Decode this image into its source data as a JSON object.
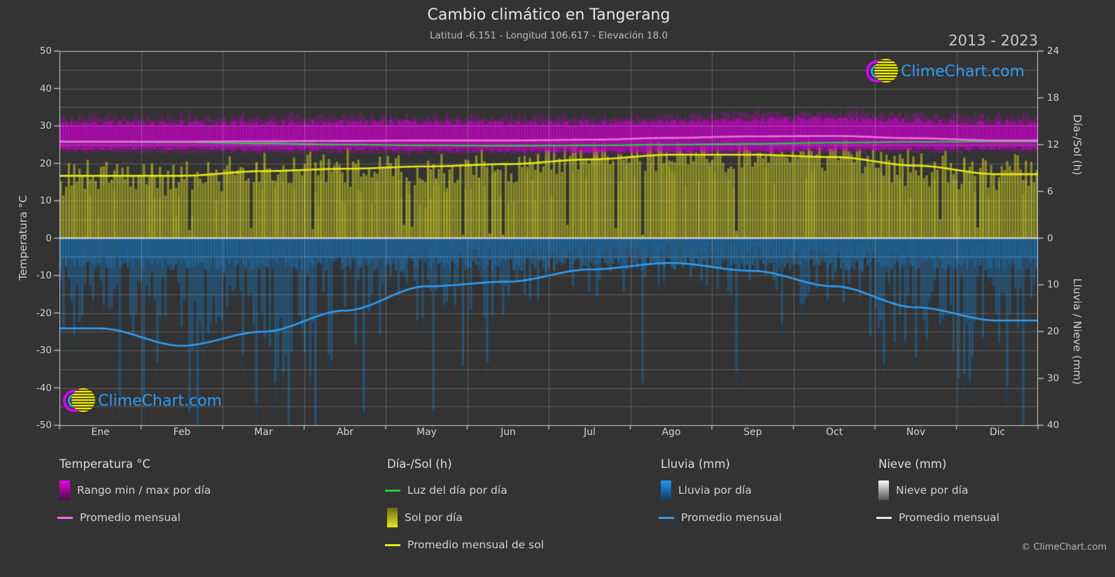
{
  "title": "Cambio climático en Tangerang",
  "subtitle": "Latitud -6.151 - Longitud 106.617 - Elevación 18.0",
  "year_range": "2013 - 2023",
  "watermark": {
    "text": "ClimeChart.com",
    "copyright": "© ClimeChart.com"
  },
  "axes": {
    "y_left": {
      "label": "Temperatura °C",
      "min": -50,
      "max": 50,
      "ticks": [
        50,
        40,
        30,
        20,
        10,
        0,
        -10,
        -20,
        -30,
        -40,
        -50
      ]
    },
    "y_right_top": {
      "label": "Día-/Sol (h)",
      "min": 0,
      "max": 24,
      "ticks": [
        24,
        18,
        12,
        6,
        0
      ]
    },
    "y_right_bottom": {
      "label": "Lluvia / Nieve (mm)",
      "min": 0,
      "max": 40,
      "ticks": [
        10,
        20,
        30,
        40
      ]
    },
    "x": {
      "months": [
        "Ene",
        "Feb",
        "Mar",
        "Abr",
        "May",
        "Jun",
        "Jul",
        "Ago",
        "Sep",
        "Oct",
        "Nov",
        "Dic"
      ]
    }
  },
  "legend": {
    "groups": [
      {
        "title": "Temperatura °C",
        "items": [
          {
            "swatch": "gradient-magenta",
            "label": "Rango min / max por día"
          },
          {
            "swatch": "line-magenta",
            "label": "Promedio mensual"
          }
        ]
      },
      {
        "title": "Día-/Sol (h)",
        "items": [
          {
            "swatch": "line-green",
            "label": "Luz del día por día"
          },
          {
            "swatch": "gradient-yellow",
            "label": "Sol por día"
          },
          {
            "swatch": "line-yellow",
            "label": "Promedio mensual de sol"
          }
        ]
      },
      {
        "title": "Lluvia (mm)",
        "items": [
          {
            "swatch": "gradient-blue",
            "label": "Lluvia por día"
          },
          {
            "swatch": "line-blue",
            "label": "Promedio mensual"
          }
        ]
      },
      {
        "title": "Nieve (mm)",
        "items": [
          {
            "swatch": "gradient-white",
            "label": "Nieve por día"
          },
          {
            "swatch": "line-white",
            "label": "Promedio mensual"
          }
        ]
      }
    ]
  },
  "chart_data": {
    "type": "line",
    "description": "Composite climate chart: daily bands/bars plus monthly average lines on a shared month axis",
    "categories": [
      "Ene",
      "Feb",
      "Mar",
      "Abr",
      "May",
      "Jun",
      "Jul",
      "Ago",
      "Sep",
      "Oct",
      "Nov",
      "Dic"
    ],
    "axis_mapping": {
      "temp_axis_range": [
        -50,
        50
      ],
      "sun_hours_range_mapped_to": [
        0,
        50
      ],
      "rain_mm_range_mapped_to": [
        0,
        -50
      ]
    },
    "series": [
      {
        "name": "Rango min / max por día (°C)",
        "style": "band",
        "color": "#cc00cc",
        "max_values": [
          30.8,
          30.7,
          30.8,
          31.0,
          31.0,
          30.8,
          30.8,
          31.2,
          31.8,
          32.0,
          31.4,
          30.9
        ],
        "min_values": [
          23.6,
          23.6,
          23.5,
          23.5,
          23.4,
          23.1,
          22.9,
          22.9,
          23.1,
          23.4,
          23.6,
          23.7
        ]
      },
      {
        "name": "Promedio mensual temperatura (°C)",
        "style": "line",
        "color": "#ee70e0",
        "values": [
          25.8,
          25.8,
          25.9,
          26.0,
          26.1,
          26.1,
          26.3,
          26.8,
          27.2,
          27.3,
          26.7,
          26.1
        ]
      },
      {
        "name": "Luz del día por día (h)",
        "style": "line",
        "color": "#21d043",
        "values": [
          12.35,
          12.3,
          12.15,
          12.0,
          11.9,
          11.85,
          11.9,
          12.0,
          12.1,
          12.25,
          12.35,
          12.4
        ]
      },
      {
        "name": "Sol por día (h)",
        "style": "daily-bars-up",
        "color": "#b9b922",
        "values": [
          8.0,
          8.0,
          8.6,
          8.9,
          9.2,
          9.5,
          10.1,
          10.7,
          10.7,
          10.4,
          9.3,
          8.2
        ]
      },
      {
        "name": "Promedio mensual de sol (h)",
        "style": "line",
        "color": "#e8e816",
        "values": [
          8.0,
          8.0,
          8.6,
          8.9,
          9.2,
          9.5,
          10.1,
          10.7,
          10.7,
          10.4,
          9.3,
          8.2
        ]
      },
      {
        "name": "Lluvia por día (mm)",
        "style": "daily-bars-down",
        "color": "#1b6fae",
        "values": [
          19.3,
          23.0,
          20.0,
          15.5,
          10.3,
          9.3,
          6.7,
          5.3,
          7.0,
          10.3,
          14.8,
          17.6
        ]
      },
      {
        "name": "Promedio mensual lluvia (mm)",
        "style": "line",
        "color": "#2e9df4",
        "values": [
          19.3,
          23.0,
          20.0,
          15.5,
          10.3,
          9.3,
          6.7,
          5.3,
          7.0,
          10.3,
          14.8,
          17.6
        ]
      },
      {
        "name": "Nieve por día (mm)",
        "style": "daily-bars-down",
        "color": "#e8e8e8",
        "values": [
          0,
          0,
          0,
          0,
          0,
          0,
          0,
          0,
          0,
          0,
          0,
          0
        ]
      },
      {
        "name": "Promedio mensual nieve (mm)",
        "style": "line",
        "color": "#e8e8e8",
        "values": [
          0,
          0,
          0,
          0,
          0,
          0,
          0,
          0,
          0,
          0,
          0,
          0
        ]
      }
    ],
    "grid": true,
    "legend_position": "bottom"
  },
  "colors": {
    "background": "#333333",
    "text_primary": "#e6e6e6",
    "text_secondary": "#bdbdbd",
    "grid": "rgba(255,255,255,0.22)",
    "zero_line": "#e0e0e0",
    "axis_border": "rgba(235,235,235,0.85)",
    "temp_band": "#cc00cc",
    "temp_avg_line": "#ee70e0",
    "daylight_line": "#21d043",
    "sun_fill": "#b9b922",
    "sun_avg_line": "#e8e816",
    "rain_fill": "#2080c8",
    "rain_avg_line": "#2e9df4",
    "snow_fill": "#e8e8e8",
    "watermark_text": "#2e9df2",
    "logo_magenta": "#d400ff",
    "logo_blue": "#2e9df2",
    "logo_yellow": "#e8e800"
  }
}
